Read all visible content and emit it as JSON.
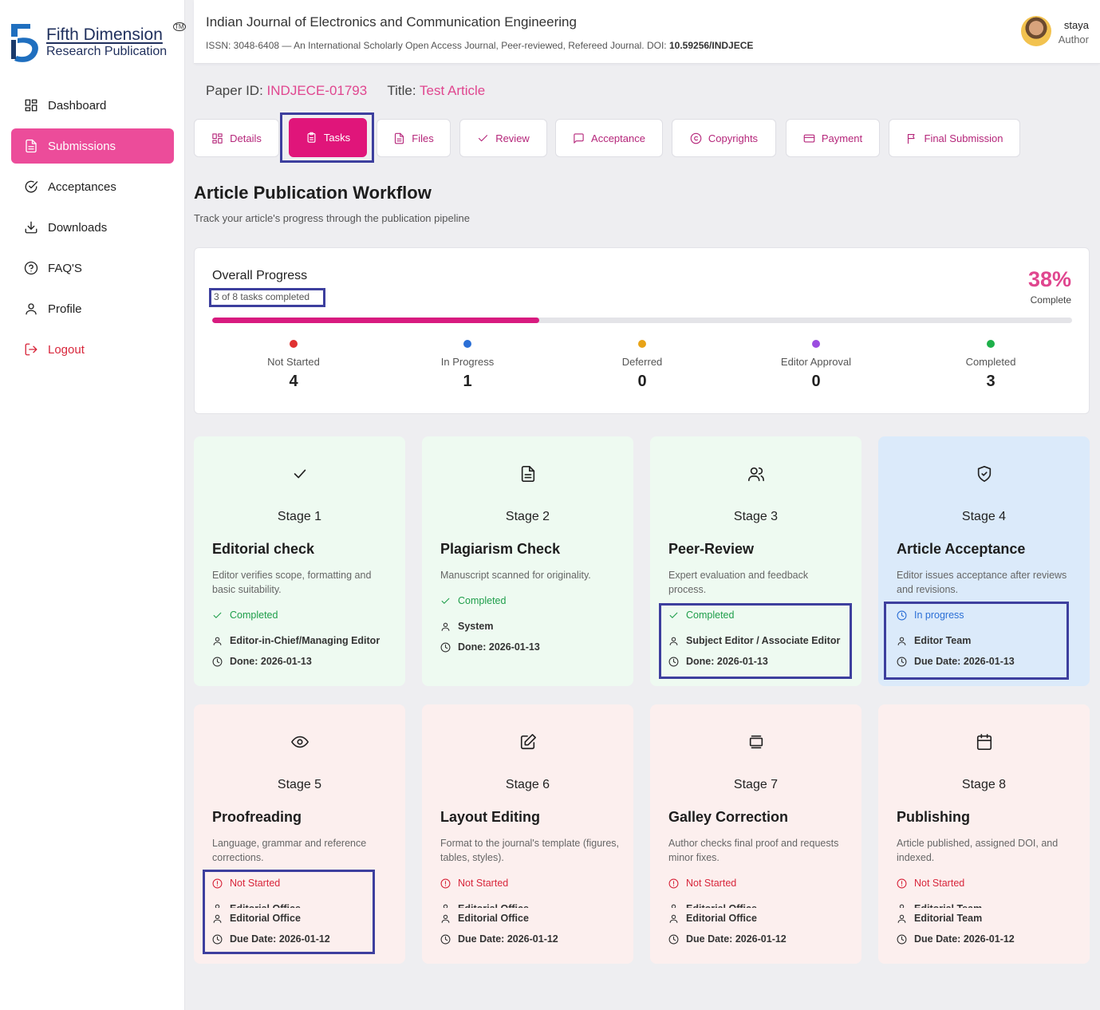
{
  "brand": {
    "line1": "Fifth Dimension",
    "line2": "Research Publication",
    "tm": "TM"
  },
  "sidebar": {
    "items": [
      {
        "label": "Dashboard",
        "icon": "grid-icon"
      },
      {
        "label": "Submissions",
        "icon": "document-icon",
        "active": true
      },
      {
        "label": "Acceptances",
        "icon": "check-circle-icon"
      },
      {
        "label": "Downloads",
        "icon": "download-icon"
      },
      {
        "label": "FAQ'S",
        "icon": "help-circle-icon"
      },
      {
        "label": "Profile",
        "icon": "user-icon"
      },
      {
        "label": "Logout",
        "icon": "logout-icon"
      }
    ]
  },
  "header": {
    "title": "Indian Journal of Electronics and Communication Engineering",
    "subtitle": "ISSN: 3048-6408 — An International Scholarly Open Access Journal, Peer-reviewed, Refereed Journal. DOI: ",
    "doi": "10.59256/INDJECE",
    "user_name": "staya",
    "user_role": "Author"
  },
  "paper": {
    "id_label": "Paper ID:",
    "id_value": "INDJECE-01793",
    "title_label": "Title:",
    "title_value": "Test Article"
  },
  "tabs": [
    {
      "label": "Details",
      "icon": "grid-icon"
    },
    {
      "label": "Tasks",
      "icon": "clipboard-icon",
      "active": true
    },
    {
      "label": "Files",
      "icon": "file-icon"
    },
    {
      "label": "Review",
      "icon": "check-icon"
    },
    {
      "label": "Acceptance",
      "icon": "message-icon"
    },
    {
      "label": "Copyrights",
      "icon": "copyright-icon"
    },
    {
      "label": "Payment",
      "icon": "credit-card-icon"
    },
    {
      "label": "Final Submission",
      "icon": "flag-icon"
    }
  ],
  "workflow": {
    "title": "Article Publication Workflow",
    "subtitle": "Track your article's progress through the publication pipeline"
  },
  "progress": {
    "title": "Overall Progress",
    "count_text": "3 of 8 tasks completed",
    "percent_text": "38%",
    "percent_label": "Complete",
    "fraction": 0.38,
    "stats": [
      {
        "label": "Not Started",
        "value": "4",
        "color": "#e03131"
      },
      {
        "label": "In Progress",
        "value": "1",
        "color": "#2b6fd6"
      },
      {
        "label": "Deferred",
        "value": "0",
        "color": "#e8a317"
      },
      {
        "label": "Editor Approval",
        "value": "0",
        "color": "#9b4de0"
      },
      {
        "label": "Completed",
        "value": "3",
        "color": "#1eb04a"
      }
    ]
  },
  "stages": [
    {
      "num": "Stage 1",
      "name": "Editorial check",
      "desc": "Editor verifies scope, formatting and basic suitability.",
      "status": "Completed",
      "owner": "Editor-in-Chief/Managing Editor",
      "date": "Done: 2026-01-13",
      "icon": "check-icon"
    },
    {
      "num": "Stage 2",
      "name": "Plagiarism Check",
      "desc": "Manuscript scanned for originality.",
      "status": "Completed",
      "owner": "System",
      "date": "Done: 2026-01-13",
      "icon": "file-text-icon"
    },
    {
      "num": "Stage 3",
      "name": "Peer-Review",
      "desc": "Expert evaluation and feedback process.",
      "status": "Completed",
      "owner": "Subject Editor / Associate Editor",
      "date": "Done: 2026-01-13",
      "icon": "users-icon"
    },
    {
      "num": "Stage 4",
      "name": "Article Acceptance",
      "desc": "Editor issues acceptance after reviews and revisions.",
      "status": "In progress",
      "owner": "Editor Team",
      "date": "Due Date: 2026-01-13",
      "icon": "shield-check-icon"
    },
    {
      "num": "Stage 5",
      "name": "Proofreading",
      "desc": "Language, grammar and reference corrections.",
      "status": "Not Started",
      "owner": "Editorial Office",
      "date": "Due Date: 2026-01-12",
      "icon": "eye-icon"
    },
    {
      "num": "Stage 6",
      "name": "Layout Editing",
      "desc": "Format to the journal's template (figures, tables, styles).",
      "status": "Not Started",
      "owner": "Editorial Office",
      "date": "Due Date: 2026-01-12",
      "icon": "edit-icon"
    },
    {
      "num": "Stage 7",
      "name": "Galley Correction",
      "desc": "Author checks final proof and requests minor fixes.",
      "status": "Not Started",
      "owner": "Editorial Office",
      "date": "Due Date: 2026-01-12",
      "icon": "layers-icon"
    },
    {
      "num": "Stage 8",
      "name": "Publishing",
      "desc": "Article published, assigned DOI, and indexed.",
      "status": "Not Started",
      "owner": "Editorial Team",
      "date": "Due Date: 2026-01-12",
      "icon": "calendar-icon"
    }
  ]
}
